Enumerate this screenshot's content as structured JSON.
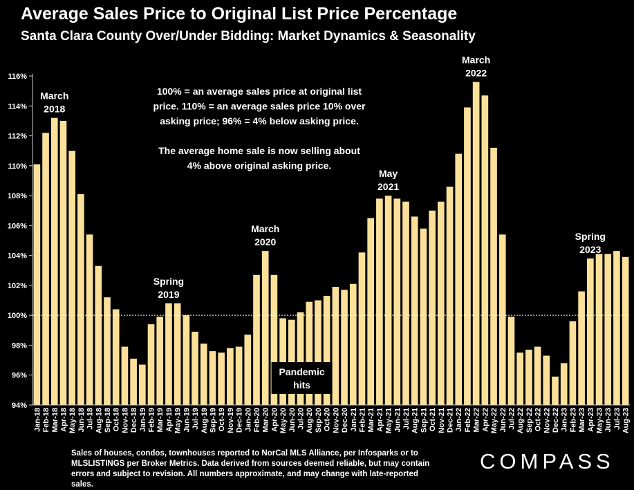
{
  "title": "Average Sales Price to Original List Price Percentage",
  "subtitle": "Santa Clara County Over/Under Bidding: Market Dynamics & Seasonality",
  "footnote": "Sales of houses, condos, townhouses reported to NorCal MLS Alliance, per Infosparks or to MLSLISTINGS per Broker Metrics. Data derived from sources deemed reliable, but may contain errors and subject to revision. All numbers approximate, and may change with late-reported sales.",
  "logo": "COMPASS",
  "colors": {
    "bar": "#fae099",
    "background": "#000000",
    "text": "#ffffff"
  },
  "chart_data": {
    "type": "bar",
    "title": "Average Sales Price to Original List Price Percentage",
    "subtitle": "Santa Clara County Over/Under Bidding: Market Dynamics & Seasonality",
    "xlabel": "",
    "ylabel": "",
    "ylim": [
      94,
      116
    ],
    "yticks": [
      "94%",
      "96%",
      "98%",
      "100%",
      "102%",
      "104%",
      "106%",
      "108%",
      "110%",
      "112%",
      "114%",
      "116%"
    ],
    "grid": false,
    "legend": "none",
    "reference_line": {
      "y": 100,
      "style": "dotted"
    },
    "categories": [
      "Jan-18",
      "Feb-18",
      "Mar-18",
      "Apr-18",
      "May-18",
      "Jun-18",
      "Jul-18",
      "Aug-18",
      "Sep-18",
      "Oct-18",
      "Nov-18",
      "Dec-18",
      "Jan-19",
      "Feb-19",
      "Mar-19",
      "Apr-19",
      "May-19",
      "Jun-19",
      "Jul-19",
      "Aug-19",
      "Sep-19",
      "Oct-19",
      "Nov-19",
      "Dec-19",
      "Jan-20",
      "Feb-20",
      "Mar-20",
      "Apr-20",
      "May-20",
      "Jun-20",
      "Jul-20",
      "Aug-20",
      "Sep-20",
      "Oct-20",
      "Nov-20",
      "Dec-20",
      "Jan-21",
      "Feb-21",
      "Mar-21",
      "Apr-21",
      "May-21",
      "Jun-21",
      "Jul-21",
      "Aug-21",
      "Sep-21",
      "Oct-21",
      "Nov-21",
      "Dec-21",
      "Jan-22",
      "Feb-22",
      "Mar-22",
      "Apr-22",
      "May-22",
      "Jun-22",
      "Jul-22",
      "Aug-22",
      "Sep-22",
      "Oct-22",
      "Nov-22",
      "Dec-22",
      "Jan-23",
      "Feb-23",
      "Mar-23",
      "Apr-23",
      "May-23",
      "Jun-23",
      "Jul-23",
      "Aug-23"
    ],
    "values": [
      110.1,
      112.2,
      113.2,
      113.0,
      111.0,
      108.1,
      105.4,
      103.3,
      101.2,
      100.4,
      97.9,
      97.1,
      96.7,
      99.4,
      99.9,
      100.8,
      100.8,
      100.0,
      98.9,
      98.1,
      97.6,
      97.5,
      97.8,
      97.9,
      98.7,
      102.7,
      104.3,
      102.7,
      99.8,
      99.7,
      100.2,
      100.9,
      101.0,
      101.3,
      101.9,
      101.7,
      102.1,
      104.2,
      106.5,
      107.8,
      108.0,
      107.8,
      107.6,
      106.6,
      105.8,
      107.0,
      107.6,
      108.6,
      110.8,
      113.9,
      115.6,
      114.7,
      111.2,
      105.4,
      99.9,
      97.5,
      97.7,
      97.9,
      97.3,
      95.9,
      96.8,
      99.6,
      101.6,
      103.8,
      104.1,
      104.1,
      104.3,
      103.9
    ],
    "annotations": [
      {
        "lines": [
          "March",
          "2018"
        ],
        "category": "Mar-18"
      },
      {
        "lines": [
          "Spring",
          "2019"
        ],
        "category": "Apr-19"
      },
      {
        "lines": [
          "March",
          "2020"
        ],
        "category": "Mar-20"
      },
      {
        "lines": [
          "May",
          "2021"
        ],
        "category": "May-21"
      },
      {
        "lines": [
          "March",
          "2022"
        ],
        "category": "Mar-22"
      },
      {
        "lines": [
          "Spring",
          "2023"
        ],
        "category": "Apr-23"
      }
    ],
    "callout": [
      "Pandemic",
      "hits"
    ],
    "note_lines": [
      "100% = an average sales price at original list",
      "price. 110% = an average sales price 10% over",
      "asking price; 96% = 4% below asking price.",
      "",
      "The average home sale is now selling about",
      "4% above original asking price."
    ]
  }
}
